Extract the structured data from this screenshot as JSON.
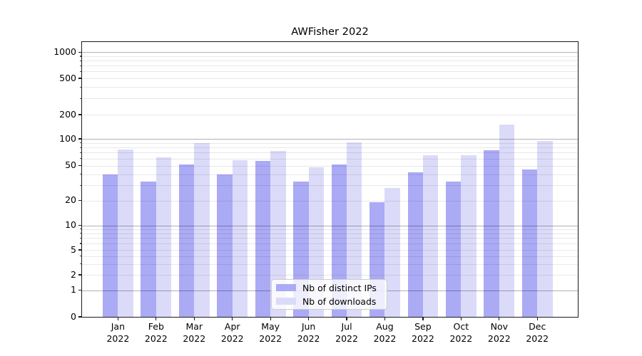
{
  "title": "AWFisher 2022",
  "colors": {
    "ips_bar": "#abaaf5",
    "downloads_bar": "#dbdbf9",
    "grid_major_rgba": "rgba(0,0,0,0.30)",
    "grid_minor_rgba": "rgba(0,0,0,0.09)",
    "axis": "#1a1a1a",
    "legend_border": "#cccccc"
  },
  "chart_data": {
    "type": "bar",
    "title": "AWFisher 2022",
    "categories": [
      "Jan",
      "Feb",
      "Mar",
      "Apr",
      "May",
      "Jun",
      "Jul",
      "Aug",
      "Sep",
      "Oct",
      "Nov",
      "Dec"
    ],
    "category_year": "2022",
    "series": [
      {
        "name": "Nb of distinct IPs",
        "color": "#abaaf5",
        "values": [
          40,
          33,
          52,
          40,
          57,
          33,
          52,
          19,
          42,
          33,
          75,
          45
        ]
      },
      {
        "name": "Nb of downloads",
        "color": "#dbdbf9",
        "values": [
          76,
          62,
          89,
          58,
          73,
          48,
          92,
          28,
          65,
          65,
          150,
          95
        ]
      }
    ],
    "yscale": "symlog",
    "ylim": [
      0,
      1000
    ],
    "y_ticks": [
      0,
      1,
      2,
      5,
      10,
      20,
      50,
      100,
      200,
      500,
      1000
    ],
    "y_minor_ticks": [
      3,
      4,
      6,
      7,
      8,
      9,
      30,
      40,
      60,
      70,
      80,
      90,
      300,
      400,
      600,
      700,
      800,
      900
    ],
    "grid": true,
    "legend_position": "lower center"
  }
}
